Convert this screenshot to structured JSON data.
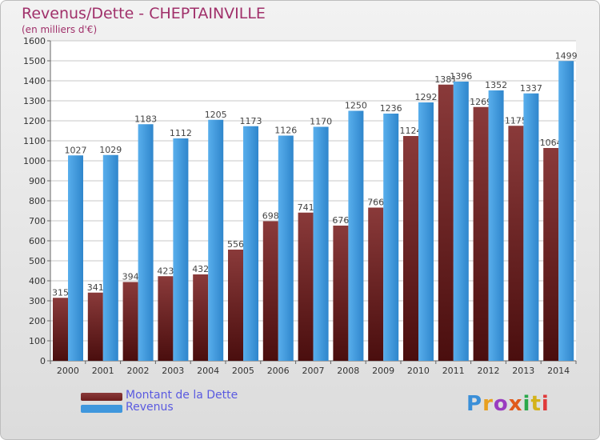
{
  "chart_data": {
    "type": "bar",
    "title": "Revenus/Dette - CHEPTAINVILLE",
    "subtitle": "(en milliers d'€)",
    "categories": [
      "2000",
      "2001",
      "2002",
      "2003",
      "2004",
      "2005",
      "2006",
      "2007",
      "2008",
      "2009",
      "2010",
      "2011",
      "2012",
      "2013",
      "2014"
    ],
    "series": [
      {
        "name": "Montant de la Dette",
        "color": "#6e1e1e",
        "values": [
          315,
          341,
          394,
          423,
          432,
          556,
          698,
          741,
          676,
          766,
          1124,
          1381,
          1269,
          1175,
          1064
        ],
        "labels": [
          "315",
          "341",
          "394",
          "423",
          "432",
          "556",
          "698",
          "741",
          "676",
          "766",
          "1124",
          "1381",
          "1269",
          "1175",
          "1064"
        ]
      },
      {
        "name": "Revenus",
        "color": "#3f97dd",
        "values": [
          1027,
          1029,
          1183,
          1112,
          1205,
          1173,
          1126,
          1170,
          1250,
          1236,
          1292,
          1396,
          1352,
          1337,
          1499
        ],
        "labels": [
          "1027",
          "1029",
          "1183",
          "1112",
          "1205",
          "1173",
          "1126",
          "1170",
          "1250",
          "1236",
          "1292",
          "1396",
          "1352",
          "1337",
          "1499"
        ]
      }
    ],
    "ylim": [
      0,
      1600
    ],
    "yticks": [
      0,
      100,
      200,
      300,
      400,
      500,
      600,
      700,
      800,
      900,
      1000,
      1100,
      1200,
      1300,
      1400,
      1500,
      1600
    ],
    "grid": true,
    "legend": "bottom-left"
  },
  "logo_text": "Proxiti"
}
